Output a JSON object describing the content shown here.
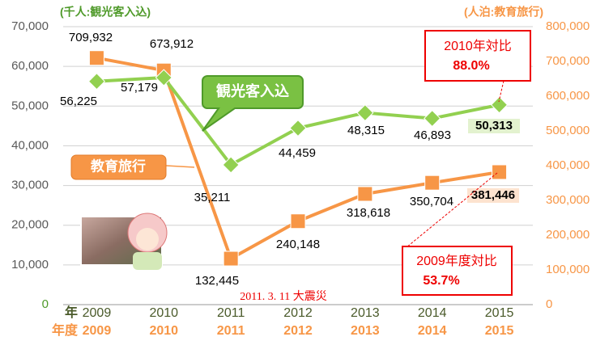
{
  "chart_data": {
    "type": "line",
    "left_unit_label": "(千人:観光客入込)",
    "right_unit_label": "(人泊:教育旅行)",
    "row_label_1": "年",
    "row_label_2": "年度",
    "categories": [
      "2009",
      "2010",
      "2011",
      "2012",
      "2013",
      "2014",
      "2015"
    ],
    "categories2": [
      "2009",
      "2010",
      "2011",
      "2012",
      "2013",
      "2014",
      "2015"
    ],
    "ylim": [
      0,
      70000
    ],
    "yticks": [
      0,
      {
        "value": 10000,
        "label": "10,000"
      },
      {
        "value": 20000,
        "label": "20,000"
      },
      {
        "value": 30000,
        "label": "30,000"
      },
      {
        "value": 40000,
        "label": "40,000"
      },
      {
        "value": 50000,
        "label": "50,000"
      },
      {
        "value": 60000,
        "label": "60,000"
      },
      {
        "value": 70000,
        "label": "70,000"
      }
    ],
    "y2lim": [
      0,
      800000
    ],
    "y2ticks": [
      0,
      {
        "value": 100000,
        "label": "100,000"
      },
      {
        "value": 200000,
        "label": "200,000"
      },
      {
        "value": 300000,
        "label": "300,000"
      },
      {
        "value": 400000,
        "label": "400,000"
      },
      {
        "value": 500000,
        "label": "500,000"
      },
      {
        "value": 600000,
        "label": "600,000"
      },
      {
        "value": 700000,
        "label": "700,000"
      },
      {
        "value": 800000,
        "label": "800,000"
      }
    ],
    "grid": true,
    "series": [
      {
        "name": "観光客入込",
        "color": "#92d050",
        "axis": "y",
        "values": [
          56225,
          57179,
          35211,
          44459,
          48315,
          46893,
          50313
        ],
        "value_labels": [
          "56,225",
          "57,179",
          "35,211",
          "44,459",
          "48,315",
          "46,893",
          "50,313"
        ]
      },
      {
        "name": "教育旅行",
        "color": "#f79646",
        "axis": "y2",
        "values": [
          709932,
          673912,
          132445,
          240148,
          318618,
          350704,
          381446
        ],
        "value_labels": [
          "709,932",
          "673,912",
          "132,445",
          "240,148",
          "318,618",
          "350,704",
          "381,446"
        ]
      }
    ],
    "annotations": {
      "compare_2010": "2010年対比",
      "compare_2010_value": "88.0%",
      "compare_2009": "2009年度対比",
      "compare_2009_value": "53.7%",
      "earthquake": "2011. 3. 11  大震災"
    }
  }
}
